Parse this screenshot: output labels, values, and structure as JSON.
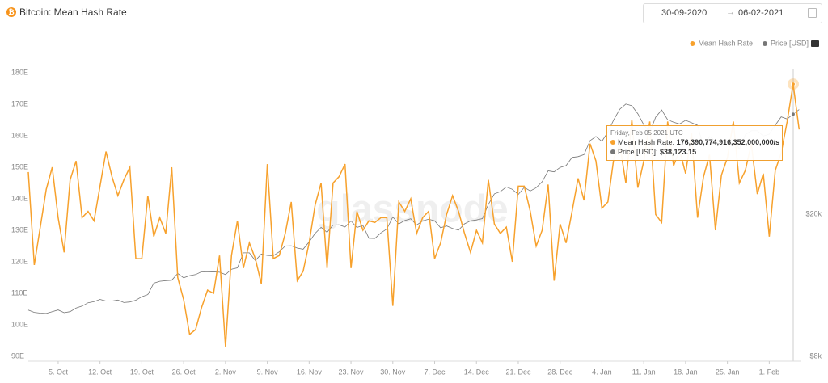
{
  "header": {
    "title": "Bitcoin: Mean Hash Rate",
    "date_from": "30-09-2020",
    "date_to": "06-02-2021"
  },
  "watermark": "glassnode",
  "tooltip": {
    "date": "Friday, Feb 05 2021 UTC",
    "items": [
      {
        "name": "Mean Hash Rate:",
        "value": "176,390,774,916,352,000,000/s"
      },
      {
        "name": "Price [USD]:",
        "value": "$38,123.15"
      }
    ]
  },
  "chart_data": {
    "type": "line",
    "legend": "top-right",
    "grid": false,
    "categories": [
      null,
      null,
      null,
      null,
      null,
      "5. Oct",
      null,
      null,
      null,
      null,
      null,
      null,
      "12. Oct",
      null,
      null,
      null,
      null,
      null,
      null,
      "19. Oct",
      null,
      null,
      null,
      null,
      null,
      null,
      "26. Oct",
      null,
      null,
      null,
      null,
      null,
      null,
      "2. Nov",
      null,
      null,
      null,
      null,
      null,
      null,
      "9. Nov",
      null,
      null,
      null,
      null,
      null,
      null,
      "16. Nov",
      null,
      null,
      null,
      null,
      null,
      null,
      "23. Nov",
      null,
      null,
      null,
      null,
      null,
      null,
      "30. Nov",
      null,
      null,
      null,
      null,
      null,
      null,
      "7. Dec",
      null,
      null,
      null,
      null,
      null,
      null,
      "14. Dec",
      null,
      null,
      null,
      null,
      null,
      null,
      "21. Dec",
      null,
      null,
      null,
      null,
      null,
      null,
      "28. Dec",
      null,
      null,
      null,
      null,
      null,
      null,
      "4. Jan",
      null,
      null,
      null,
      null,
      null,
      null,
      "11. Jan",
      null,
      null,
      null,
      null,
      null,
      null,
      "18. Jan",
      null,
      null,
      null,
      null,
      null,
      null,
      "25. Jan",
      null,
      null,
      null,
      null,
      null,
      null,
      "1. Feb",
      null,
      null,
      null,
      null,
      null
    ],
    "ylim": [
      90,
      190
    ],
    "yticks": [
      {
        "value": 90,
        "label": "90E"
      },
      {
        "value": 100,
        "label": "100E"
      },
      {
        "value": 110,
        "label": "110E"
      },
      {
        "value": 120,
        "label": "120E"
      },
      {
        "value": 130,
        "label": "130E"
      },
      {
        "value": 140,
        "label": "140E"
      },
      {
        "value": 150,
        "label": "150E"
      },
      {
        "value": 160,
        "label": "160E"
      },
      {
        "value": 170,
        "label": "170E"
      },
      {
        "value": 180,
        "label": "180E"
      }
    ],
    "y2lim": [
      8000,
      61000
    ],
    "y2log": true,
    "y2ticks": [
      {
        "value": 8000,
        "label": "$8k"
      },
      {
        "value": 20000,
        "label": "$20k"
      }
    ],
    "series": [
      {
        "name": "Mean Hash Rate",
        "color": "#f7a12c",
        "values": [
          148.5,
          119,
          131,
          143,
          150,
          134,
          123,
          146,
          152,
          134,
          136,
          133,
          144,
          155,
          147,
          141,
          146,
          150,
          121,
          121,
          141,
          128,
          134,
          129,
          150,
          115,
          108,
          97,
          98.5,
          105.5,
          111,
          110,
          122,
          93,
          122,
          133,
          118,
          126,
          121,
          113,
          151,
          121,
          122,
          129,
          139,
          114,
          117,
          126,
          138,
          145,
          118,
          145,
          147,
          151,
          118,
          136,
          130,
          133,
          132.5,
          134,
          134,
          106,
          139,
          136,
          140,
          129,
          134,
          136,
          121,
          126,
          135,
          141,
          136,
          129,
          123,
          130,
          126,
          146,
          132,
          129,
          131,
          120,
          144,
          144,
          136,
          125,
          130,
          144.5,
          114,
          132,
          126,
          136,
          146.5,
          139.5,
          157.5,
          152,
          137,
          139,
          153,
          157,
          145,
          165,
          143.5,
          152,
          164.5,
          135,
          132.5,
          164.5,
          150.5,
          155.5,
          148,
          161,
          134,
          147,
          154,
          130,
          147.5,
          153,
          164.5,
          145,
          149,
          157.5,
          141.5,
          148,
          128,
          149,
          154.5,
          164.5,
          176.39,
          162
        ]
      },
      {
        "name": "Price [USD]",
        "color": "#777777",
        "axis": "y2",
        "values": [
          10780,
          10620,
          10570,
          10550,
          10670,
          10790,
          10600,
          10670,
          10920,
          11060,
          11300,
          11380,
          11550,
          11430,
          11430,
          11500,
          11320,
          11360,
          11490,
          11750,
          11910,
          12820,
          12980,
          13030,
          13070,
          13650,
          13270,
          13460,
          13550,
          13800,
          13780,
          13800,
          13760,
          13550,
          14030,
          14150,
          15590,
          15590,
          14830,
          15480,
          15330,
          15300,
          15700,
          16300,
          16320,
          16080,
          15960,
          16730,
          17670,
          18370,
          17800,
          18650,
          18680,
          18420,
          19150,
          18360,
          18600,
          17130,
          17110,
          17720,
          18180,
          19650,
          18790,
          19200,
          19420,
          18650,
          19150,
          19360,
          19170,
          18320,
          18540,
          18250,
          18050,
          18800,
          19160,
          19270,
          19440,
          21310,
          22800,
          23130,
          23850,
          23480,
          22720,
          23780,
          23240,
          23730,
          24660,
          26440,
          26270,
          27040,
          27360,
          28840,
          29000,
          29370,
          32130,
          33000,
          31990,
          33990,
          36820,
          39370,
          40670,
          40240,
          38240,
          35570,
          33920,
          37390,
          39150,
          36770,
          36180,
          35790,
          36630,
          36070,
          35470,
          30830,
          33000,
          32100,
          32290,
          32250,
          32500,
          30400,
          33400,
          34250,
          34260,
          33110,
          33510,
          35510,
          37470,
          36930,
          38123.15,
          39270
        ]
      }
    ]
  }
}
